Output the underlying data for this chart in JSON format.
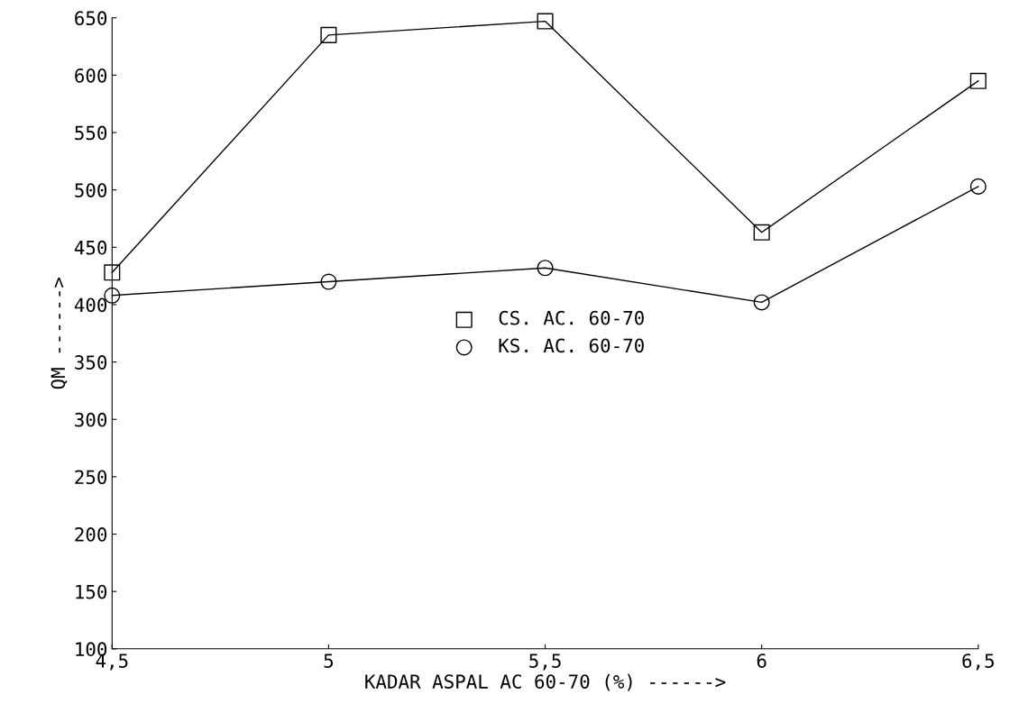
{
  "chart_data": {
    "type": "line",
    "categories": [
      "4,5",
      "5",
      "5,5",
      "6",
      "6,5"
    ],
    "xlabel": "KADAR ASPAL AC 60-70 (%) ------>",
    "ylabel": "QM ------>",
    "ylim": [
      100,
      650
    ],
    "yticks": [
      100,
      150,
      200,
      250,
      300,
      350,
      400,
      450,
      500,
      550,
      600,
      650
    ],
    "grid": false,
    "legend": "center",
    "line_style": "solid",
    "series": [
      {
        "name": "CS. AC. 60-70",
        "color": "#000000",
        "marker": "square",
        "values": [
          428,
          635,
          647,
          463,
          595
        ]
      },
      {
        "name": "KS. AC. 60-70",
        "color": "#000000",
        "marker": "circle",
        "values": [
          408,
          420,
          432,
          402,
          503
        ]
      }
    ]
  }
}
